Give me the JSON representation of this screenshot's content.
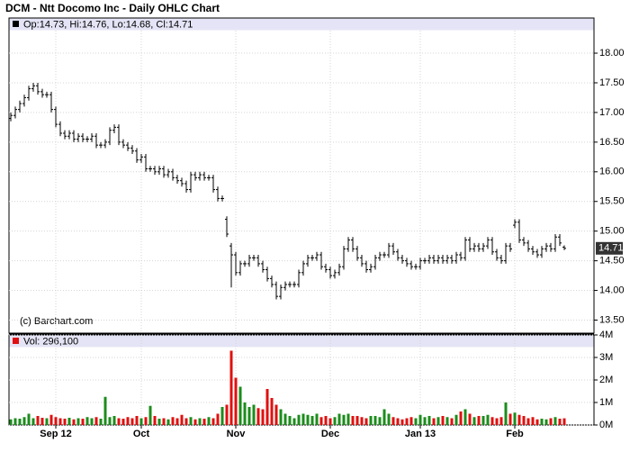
{
  "chart_data": [
    {
      "type": "ohlc",
      "title": "DCM - Ntt Docomo Inc - Daily OHLC Chart",
      "legend": "Op:14.73, Hi:14.76, Lo:14.68, Cl:14.71",
      "annotation": "(c) Barchart.com",
      "color": "#000000",
      "open": [
        16.9,
        16.95,
        17.05,
        17.15,
        17.25,
        17.4,
        17.45,
        17.35,
        17.3,
        17.3,
        17.05,
        16.8,
        16.65,
        16.6,
        16.65,
        16.55,
        16.6,
        16.55,
        16.55,
        16.6,
        16.45,
        16.45,
        16.5,
        16.7,
        16.75,
        16.5,
        16.45,
        16.4,
        16.35,
        16.2,
        16.25,
        16.05,
        16.05,
        16.0,
        16.05,
        15.95,
        16.0,
        15.9,
        15.85,
        15.8,
        15.7,
        15.95,
        15.9,
        15.95,
        15.9,
        15.9,
        15.7,
        15.55,
        15.2,
        14.75,
        14.6,
        14.3,
        14.45,
        14.45,
        14.55,
        14.55,
        14.45,
        14.35,
        14.2,
        14.1,
        13.9,
        14.05,
        14.1,
        14.1,
        14.1,
        14.3,
        14.45,
        14.55,
        14.55,
        14.6,
        14.4,
        14.35,
        14.25,
        14.3,
        14.4,
        14.7,
        14.85,
        14.7,
        14.55,
        14.45,
        14.35,
        14.4,
        14.55,
        14.6,
        14.6,
        14.75,
        14.65,
        14.55,
        14.5,
        14.45,
        14.4,
        14.4,
        14.5,
        14.5,
        14.55,
        14.5,
        14.55,
        14.5,
        14.55,
        14.5,
        14.6,
        14.55,
        14.85,
        14.7,
        14.75,
        14.7,
        14.75,
        14.85,
        14.65,
        14.55,
        14.5,
        14.75,
        15.1,
        15.15,
        14.85,
        14.8,
        14.7,
        14.65,
        14.6,
        14.7,
        14.75,
        14.7,
        14.9,
        14.73
      ],
      "high": [
        17.0,
        17.1,
        17.2,
        17.3,
        17.45,
        17.5,
        17.5,
        17.4,
        17.35,
        17.35,
        17.1,
        16.85,
        16.7,
        16.7,
        16.7,
        16.65,
        16.65,
        16.6,
        16.65,
        16.65,
        16.5,
        16.55,
        16.75,
        16.8,
        16.8,
        16.55,
        16.5,
        16.45,
        16.4,
        16.3,
        16.3,
        16.1,
        16.1,
        16.1,
        16.1,
        16.05,
        16.05,
        15.95,
        15.9,
        15.85,
        16.0,
        16.0,
        16.0,
        16.0,
        15.95,
        15.95,
        15.75,
        15.6,
        15.25,
        14.8,
        14.65,
        14.5,
        14.5,
        14.6,
        14.6,
        14.6,
        14.5,
        14.4,
        14.25,
        14.15,
        14.1,
        14.15,
        14.15,
        14.15,
        14.35,
        14.5,
        14.6,
        14.6,
        14.65,
        14.65,
        14.45,
        14.4,
        14.35,
        14.45,
        14.75,
        14.9,
        14.9,
        14.75,
        14.6,
        14.5,
        14.45,
        14.6,
        14.65,
        14.65,
        14.8,
        14.8,
        14.7,
        14.6,
        14.55,
        14.5,
        14.45,
        14.55,
        14.55,
        14.6,
        14.6,
        14.6,
        14.6,
        14.6,
        14.6,
        14.65,
        14.65,
        14.9,
        14.9,
        14.8,
        14.8,
        14.8,
        14.9,
        14.9,
        14.7,
        14.6,
        14.8,
        14.8,
        15.2,
        15.2,
        14.9,
        14.85,
        14.75,
        14.7,
        14.75,
        14.8,
        14.8,
        14.95,
        14.95,
        14.76
      ],
      "low": [
        16.85,
        16.9,
        17.0,
        17.1,
        17.2,
        17.35,
        17.3,
        17.25,
        17.25,
        17.0,
        16.75,
        16.6,
        16.55,
        16.55,
        16.5,
        16.5,
        16.5,
        16.5,
        16.5,
        16.4,
        16.4,
        16.4,
        16.45,
        16.65,
        16.45,
        16.4,
        16.35,
        16.3,
        16.15,
        16.15,
        16.0,
        16.0,
        15.95,
        15.95,
        15.9,
        15.9,
        15.85,
        15.8,
        15.75,
        15.65,
        15.65,
        15.85,
        15.85,
        15.85,
        15.85,
        15.65,
        15.5,
        15.5,
        14.9,
        14.05,
        14.25,
        14.25,
        14.4,
        14.4,
        14.5,
        14.4,
        14.3,
        14.15,
        14.05,
        13.85,
        13.85,
        14.0,
        14.05,
        14.05,
        14.05,
        14.25,
        14.4,
        14.5,
        14.5,
        14.35,
        14.3,
        14.2,
        14.2,
        14.25,
        14.35,
        14.65,
        14.65,
        14.5,
        14.4,
        14.3,
        14.3,
        14.35,
        14.5,
        14.55,
        14.55,
        14.6,
        14.5,
        14.45,
        14.4,
        14.35,
        14.35,
        14.35,
        14.45,
        14.45,
        14.45,
        14.45,
        14.45,
        14.45,
        14.45,
        14.45,
        14.5,
        14.5,
        14.65,
        14.65,
        14.65,
        14.65,
        14.7,
        14.6,
        14.5,
        14.45,
        14.45,
        14.65,
        15.05,
        14.8,
        14.75,
        14.65,
        14.6,
        14.55,
        14.55,
        14.65,
        14.65,
        14.65,
        14.75,
        14.68
      ],
      "close": [
        16.95,
        17.05,
        17.15,
        17.25,
        17.4,
        17.45,
        17.35,
        17.3,
        17.3,
        17.05,
        16.8,
        16.65,
        16.6,
        16.65,
        16.55,
        16.6,
        16.55,
        16.55,
        16.6,
        16.45,
        16.45,
        16.5,
        16.7,
        16.75,
        16.5,
        16.45,
        16.4,
        16.35,
        16.2,
        16.25,
        16.05,
        16.05,
        16.0,
        16.05,
        15.95,
        16.0,
        15.9,
        15.85,
        15.8,
        15.7,
        15.95,
        15.9,
        15.95,
        15.9,
        15.9,
        15.7,
        15.55,
        15.55,
        14.95,
        14.6,
        14.3,
        14.45,
        14.45,
        14.55,
        14.55,
        14.45,
        14.35,
        14.2,
        14.1,
        13.9,
        14.05,
        14.1,
        14.1,
        14.1,
        14.3,
        14.45,
        14.55,
        14.55,
        14.6,
        14.4,
        14.35,
        14.25,
        14.3,
        14.4,
        14.7,
        14.85,
        14.7,
        14.55,
        14.45,
        14.35,
        14.4,
        14.55,
        14.6,
        14.6,
        14.75,
        14.65,
        14.55,
        14.5,
        14.45,
        14.4,
        14.4,
        14.5,
        14.5,
        14.55,
        14.5,
        14.55,
        14.5,
        14.55,
        14.5,
        14.6,
        14.55,
        14.85,
        14.7,
        14.75,
        14.7,
        14.75,
        14.85,
        14.65,
        14.55,
        14.5,
        14.75,
        14.7,
        15.15,
        14.85,
        14.8,
        14.7,
        14.65,
        14.6,
        14.7,
        14.75,
        14.7,
        14.9,
        14.8,
        14.71
      ],
      "last_value": 14.71,
      "ylim": [
        13.28,
        18.38
      ],
      "yticks": [
        {
          "value": 13.5,
          "label": "13.50"
        },
        {
          "value": 14,
          "label": "14.00"
        },
        {
          "value": 14.5,
          "label": "14.50"
        },
        {
          "value": 15,
          "label": "15.00"
        },
        {
          "value": 15.5,
          "label": "15.50"
        },
        {
          "value": 16,
          "label": "16.00"
        },
        {
          "value": 16.5,
          "label": "16.50"
        },
        {
          "value": 17,
          "label": "17.00"
        },
        {
          "value": 17.5,
          "label": "17.50"
        },
        {
          "value": 18,
          "label": "18.00"
        }
      ],
      "grid": true
    },
    {
      "type": "bar",
      "title": "Vol: 296,100",
      "up_color": "#1c8c1c",
      "down_color": "#e01010",
      "categories": [
        null,
        null,
        null,
        null,
        null,
        null,
        null,
        null,
        null,
        null,
        "Sep 12",
        null,
        null,
        null,
        null,
        null,
        null,
        null,
        null,
        null,
        null,
        null,
        null,
        null,
        null,
        null,
        null,
        null,
        null,
        "Oct",
        null,
        null,
        null,
        null,
        null,
        null,
        null,
        null,
        null,
        null,
        null,
        null,
        null,
        null,
        null,
        null,
        null,
        null,
        null,
        null,
        "Nov",
        null,
        null,
        null,
        null,
        null,
        null,
        null,
        null,
        null,
        null,
        null,
        null,
        null,
        null,
        null,
        null,
        null,
        null,
        null,
        null,
        "Dec",
        null,
        null,
        null,
        null,
        null,
        null,
        null,
        null,
        null,
        null,
        null,
        null,
        null,
        null,
        null,
        null,
        null,
        null,
        null,
        "Jan 13",
        null,
        null,
        null,
        null,
        null,
        null,
        null,
        null,
        null,
        null,
        null,
        null,
        null,
        null,
        null,
        null,
        null,
        null,
        null,
        null,
        "Feb",
        null,
        null,
        null,
        null,
        null,
        null,
        null,
        null,
        null,
        null,
        null
      ],
      "values": [
        250000,
        300000,
        280000,
        350000,
        500000,
        300000,
        400000,
        320000,
        300000,
        450000,
        350000,
        300000,
        280000,
        320000,
        250000,
        300000,
        280000,
        350000,
        300000,
        350000,
        280000,
        1250000,
        350000,
        400000,
        300000,
        280000,
        350000,
        300000,
        400000,
        300000,
        350000,
        850000,
        400000,
        280000,
        300000,
        250000,
        350000,
        300000,
        450000,
        300000,
        350000,
        250000,
        300000,
        280000,
        350000,
        300000,
        500000,
        800000,
        900000,
        3300000,
        2100000,
        1700000,
        1000000,
        800000,
        900000,
        750000,
        700000,
        1600000,
        1200000,
        900000,
        700000,
        500000,
        400000,
        300000,
        450000,
        500000,
        450000,
        400000,
        500000,
        350000,
        400000,
        300000,
        350000,
        500000,
        450000,
        500000,
        400000,
        400000,
        350000,
        300000,
        400000,
        400000,
        350000,
        700000,
        500000,
        350000,
        300000,
        250000,
        300000,
        350000,
        300000,
        450000,
        350000,
        400000,
        300000,
        350000,
        400000,
        350000,
        300000,
        450000,
        600000,
        700000,
        500000,
        350000,
        400000,
        400000,
        450000,
        350000,
        300000,
        350000,
        1000000,
        500000,
        550000,
        450000,
        400000,
        300000,
        350000,
        250000,
        280000,
        250000,
        300000,
        350000,
        280000,
        296100
      ],
      "ylim": [
        0,
        4000000
      ],
      "yticks": [
        {
          "value": 0,
          "label": "0M"
        },
        {
          "value": 1000000,
          "label": "1M"
        },
        {
          "value": 2000000,
          "label": "2M"
        },
        {
          "value": 3000000,
          "label": "3M"
        },
        {
          "value": 4000000,
          "label": "4M"
        }
      ],
      "grid": true
    }
  ]
}
